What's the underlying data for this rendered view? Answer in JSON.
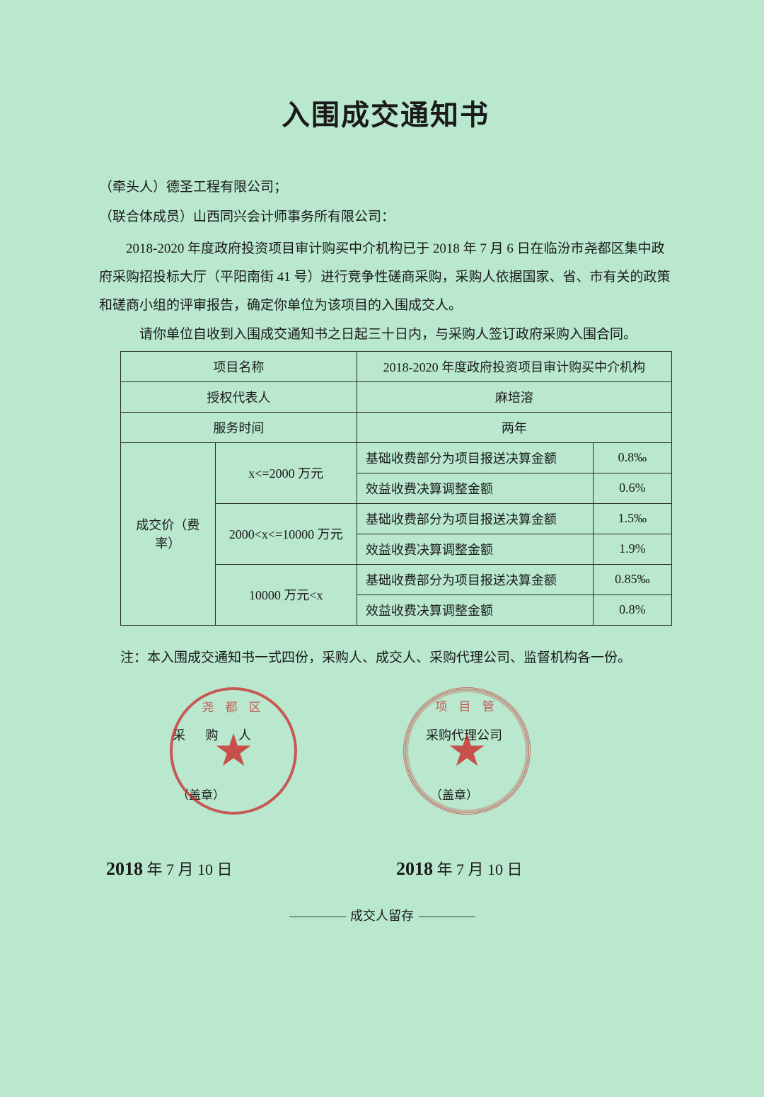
{
  "document": {
    "title": "入围成交通知书",
    "leader_label": "（牵头人）",
    "leader_name": "德圣工程有限公司；",
    "member_label": "（联合体成员）",
    "member_name": "山西同兴会计师事务所有限公司：",
    "body": "2018-2020 年度政府投资项目审计购买中介机构已于 2018 年 7 月 6 日在临汾市尧都区集中政府采购招投标大厅（平阳南街 41 号）进行竞争性磋商采购，采购人依据国家、省、市有关的政策和磋商小组的评审报告，确定你单位为该项目的入围成交人。",
    "instruction": "请你单位自收到入围成交通知书之日起三十日内，与采购人签订政府采购入围合同。",
    "note": "注：本入围成交通知书一式四份，采购人、成交人、采购代理公司、监督机构各一份。",
    "footer": "成交人留存"
  },
  "table": {
    "rows": {
      "project_label": "项目名称",
      "project_value": "2018-2020 年度政府投资项目审计购买中介机构",
      "rep_label": "授权代表人",
      "rep_value": "麻培溶",
      "period_label": "服务时间",
      "period_value": "两年",
      "price_label": "成交价（费率）"
    },
    "ranges": [
      {
        "range": "x<=2000 万元",
        "base": "基础收费部分为项目报送决算金额",
        "base_rate": "0.8‰",
        "benefit": "效益收费决算调整金额",
        "benefit_rate": "0.6%"
      },
      {
        "range": "2000<x<=10000 万元",
        "base": "基础收费部分为项目报送决算金额",
        "base_rate": "1.5‰",
        "benefit": "效益收费决算调整金额",
        "benefit_rate": "1.9%"
      },
      {
        "range": "10000 万元<x",
        "base": "基础收费部分为项目报送决算金额",
        "base_rate": "0.85‰",
        "benefit": "效益收费决算调整金额",
        "benefit_rate": "0.8%"
      }
    ]
  },
  "seals": {
    "left_label": "采 购 人",
    "right_label": "采购代理公司",
    "stamp_sub": "（盖章）",
    "left_date": "2018 年 7 月 10 日",
    "right_date": "2018 年 7 月 10 日",
    "left_seal_text": "尧 都 区",
    "right_seal_text": "项 目 管"
  },
  "style": {
    "bg_color": "#b9e8cf",
    "seal_color": "rgba(204,30,30,0.7)",
    "text_color": "#1a1a1a",
    "border_color": "#2a2a2a",
    "title_fontsize": 40,
    "body_fontsize": 19,
    "table_fontsize": 18
  }
}
